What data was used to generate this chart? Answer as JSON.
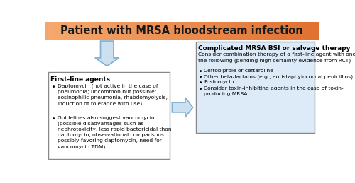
{
  "title": "Patient with MRSA bloodstream infection",
  "title_bg_left": "#f5a86e",
  "title_bg_right": "#e07030",
  "title_color": "#1a1a1a",
  "fig_bg": "#ffffff",
  "left_box_title": "First-line agents",
  "left_box_bullet1": "Daptomycin (not active in the case of\npneumonia; uncommon but possible:\neosinophilic pneumonia, rhabdomyolysis,\ninduction of tolerance with use)",
  "left_box_bullet2": "Guidelines also suggest vancomycin\n(possible disadvantages such as\nnephrotoxicity, less rapid bactericidal than\ndaptomycin, observational comparisons\npossibly favoring daptomycin, need for\nvancomycin TDM)",
  "right_box_title": "Complicated MRSA BSI or salvage therapy",
  "right_box_intro": "Consider combination therapy of a first-line agent with one of\nthe following (pending high certainty evidence from RCT)",
  "right_box_b1": "Ceftobiprole or ceftaroline",
  "right_box_b2": "Other beta-lactams (e.g., antistaphylococcal penicillins)",
  "right_box_b3": "Fosfomycin",
  "right_box_b4": "Consider toxin-inhibiting agents in the case of toxin-\nproducing MRSA",
  "left_box_bg": "#ffffff",
  "left_box_border": "#888888",
  "right_box_bg": "#ddeaf7",
  "right_box_border": "#888888",
  "arrow_face": "#cce0f0",
  "arrow_edge": "#7fafd3"
}
